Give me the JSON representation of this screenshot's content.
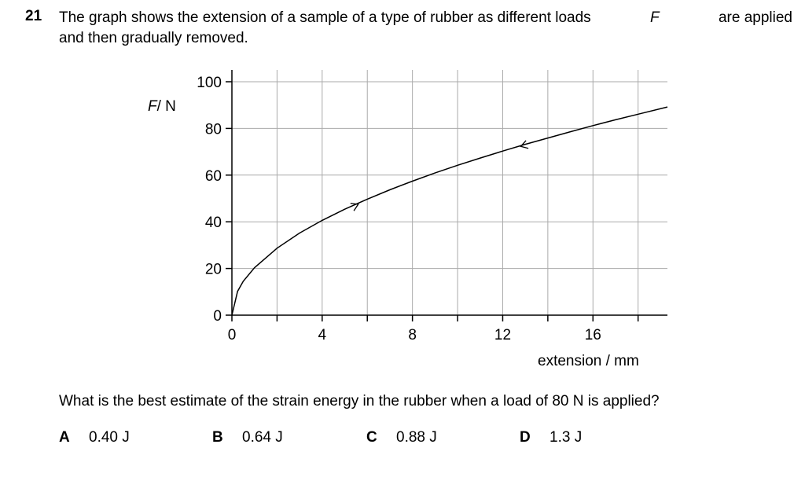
{
  "question": {
    "number": "21",
    "text_line1_part1": "The graph shows the extension of a sample of a type of rubber as different loads",
    "text_line1_var": "F",
    "text_line1_part2": "are applied",
    "text_line2": "and then gradually removed.",
    "prompt": "What is the best estimate of the strain energy in the rubber when a load of 80 N is applied?"
  },
  "chart_data": {
    "type": "line",
    "ylabel_var": "F",
    "ylabel_unit": "/ N",
    "xlabel": "extension / mm",
    "xlim": [
      0,
      19.3
    ],
    "ylim": [
      0,
      100
    ],
    "x_ticks": [
      "0",
      "4",
      "8",
      "12",
      "16"
    ],
    "y_ticks": [
      "0",
      "20",
      "40",
      "60",
      "80",
      "100"
    ],
    "grid": true,
    "series": [
      {
        "x": [
          0,
          0.25,
          0.5,
          1,
          2,
          3,
          4,
          5,
          6,
          7,
          8,
          9,
          10,
          11,
          12,
          13,
          14,
          15,
          16,
          17,
          18,
          19.3
        ],
        "y": [
          0,
          10.2,
          14.5,
          20.3,
          28.7,
          35.2,
          40.6,
          45.4,
          49.7,
          53.7,
          57.4,
          60.9,
          64.2,
          67.3,
          70.3,
          73.2,
          75.9,
          78.6,
          81.2,
          83.7,
          86.1,
          89.2
        ]
      }
    ],
    "arrows": [
      {
        "x": 5.6,
        "y": 47.5,
        "direction": "up"
      },
      {
        "x": 12.8,
        "y": 72.3,
        "direction": "down"
      }
    ]
  },
  "options": [
    {
      "letter": "A",
      "value": "0.40 J"
    },
    {
      "letter": "B",
      "value": "0.64 J"
    },
    {
      "letter": "C",
      "value": "0.88 J"
    },
    {
      "letter": "D",
      "value": "1.3 J"
    }
  ]
}
